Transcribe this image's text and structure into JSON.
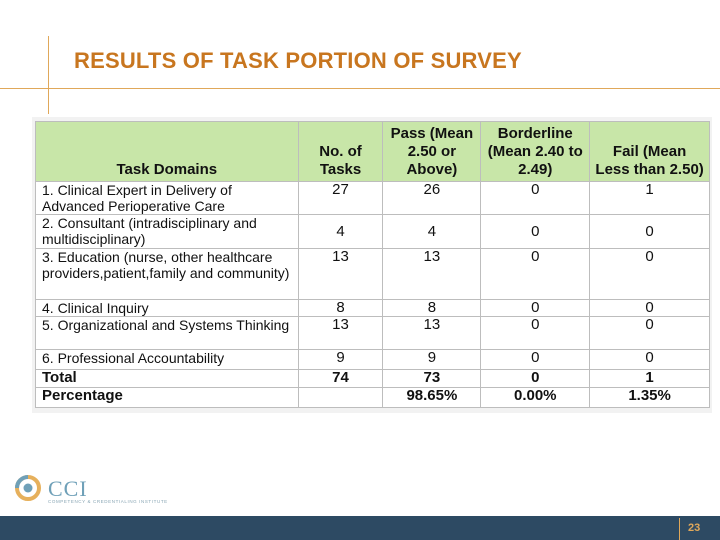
{
  "slide": {
    "title": "RESULTS OF TASK PORTION OF SURVEY",
    "page_number": "23"
  },
  "table": {
    "headers": {
      "domain": "Task Domains",
      "tasks": "No. of Tasks",
      "pass": "Pass (Mean 2.50 or Above)",
      "borderline": "Borderline (Mean 2.40 to 2.49)",
      "fail": "Fail (Mean Less than 2.50)"
    },
    "rows": [
      {
        "domain": "1. Clinical Expert in Delivery of Advanced Perioperative Care",
        "tasks": "27",
        "pass": "26",
        "borderline": "0",
        "fail": "1"
      },
      {
        "domain": "2. Consultant (intradisciplinary and multidisciplinary)",
        "tasks": "4",
        "pass": "4",
        "borderline": "0",
        "fail": "0"
      },
      {
        "domain": "3. Education (nurse, other healthcare providers,patient,family and community)",
        "tasks": "13",
        "pass": "13",
        "borderline": "0",
        "fail": "0"
      },
      {
        "domain": "4. Clinical Inquiry",
        "tasks": "8",
        "pass": "8",
        "borderline": "0",
        "fail": "0"
      },
      {
        "domain": "5. Organizational and Systems Thinking",
        "tasks": "13",
        "pass": "13",
        "borderline": "0",
        "fail": "0"
      },
      {
        "domain": "6. Professional Accountability",
        "tasks": "9",
        "pass": "9",
        "borderline": "0",
        "fail": "0"
      }
    ],
    "total": {
      "label": "Total",
      "tasks": "74",
      "pass": "73",
      "borderline": "0",
      "fail": "1"
    },
    "percentage": {
      "label": "Percentage",
      "tasks": "",
      "pass": "98.65%",
      "borderline": "0.00%",
      "fail": "1.35%"
    }
  },
  "logo": {
    "name": "CCI",
    "tagline": "COMPETENCY & CREDENTIALING INSTITUTE"
  },
  "colors": {
    "title": "#c8761f",
    "header_fill": "#c8e6a8",
    "footer": "#2d4a63",
    "accent": "#e0a85a"
  }
}
